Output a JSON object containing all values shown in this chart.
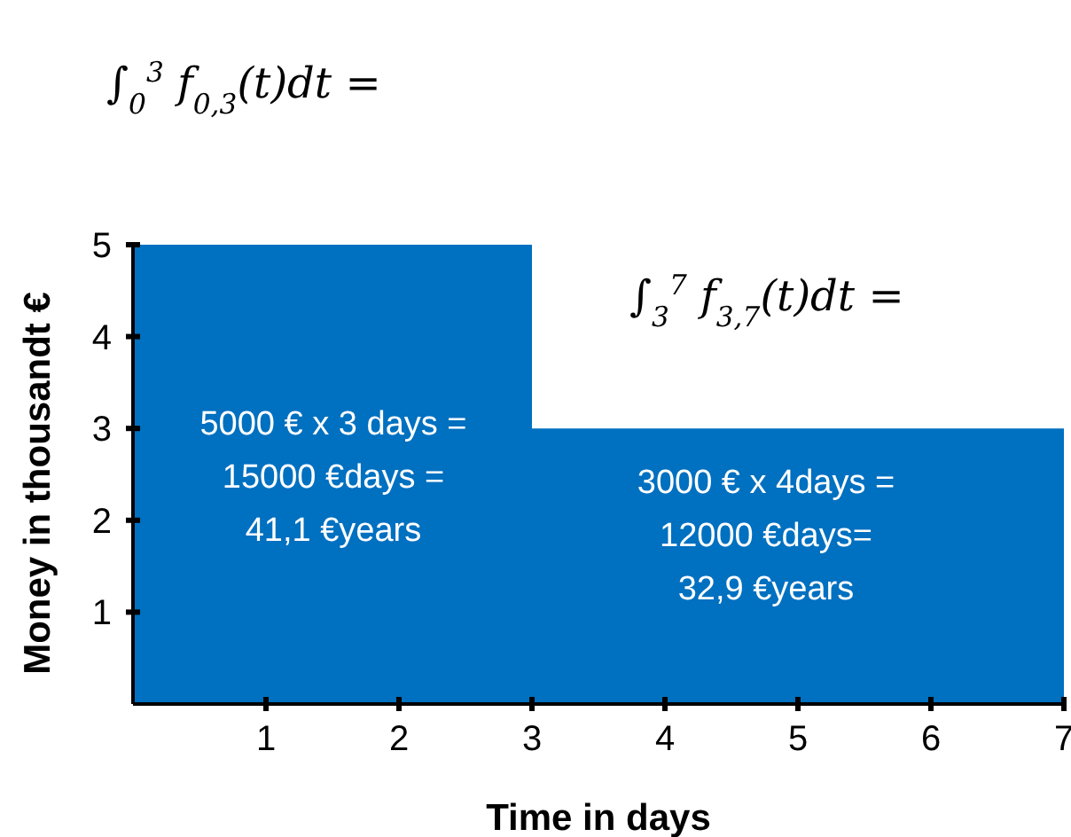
{
  "chart_data": {
    "type": "area",
    "xlabel": "Time in days",
    "ylabel": "Money in thousandt €",
    "x": [
      0,
      3,
      3,
      7
    ],
    "series": [
      {
        "color": "#0070c0",
        "values": [
          5,
          5,
          3,
          3
        ]
      }
    ],
    "xlim": [
      0,
      7
    ],
    "xticks": [
      1,
      2,
      3,
      4,
      5,
      6,
      7
    ],
    "ylim": [
      0,
      5
    ],
    "yticks": [
      1,
      2,
      3,
      4,
      5
    ],
    "grid": false,
    "annotations": [
      "∫$_{0}$$^{3}$ f$_{0,3}$(t)dt =",
      "∫$_{3}$$^{7}$ f$_{3,7}$(t)dt =",
      "5000 € x 3 days =\n15000 €days =\n41,1 €years",
      "3000 € x 4days =\n12000 €days=\n32,9 €years"
    ]
  }
}
